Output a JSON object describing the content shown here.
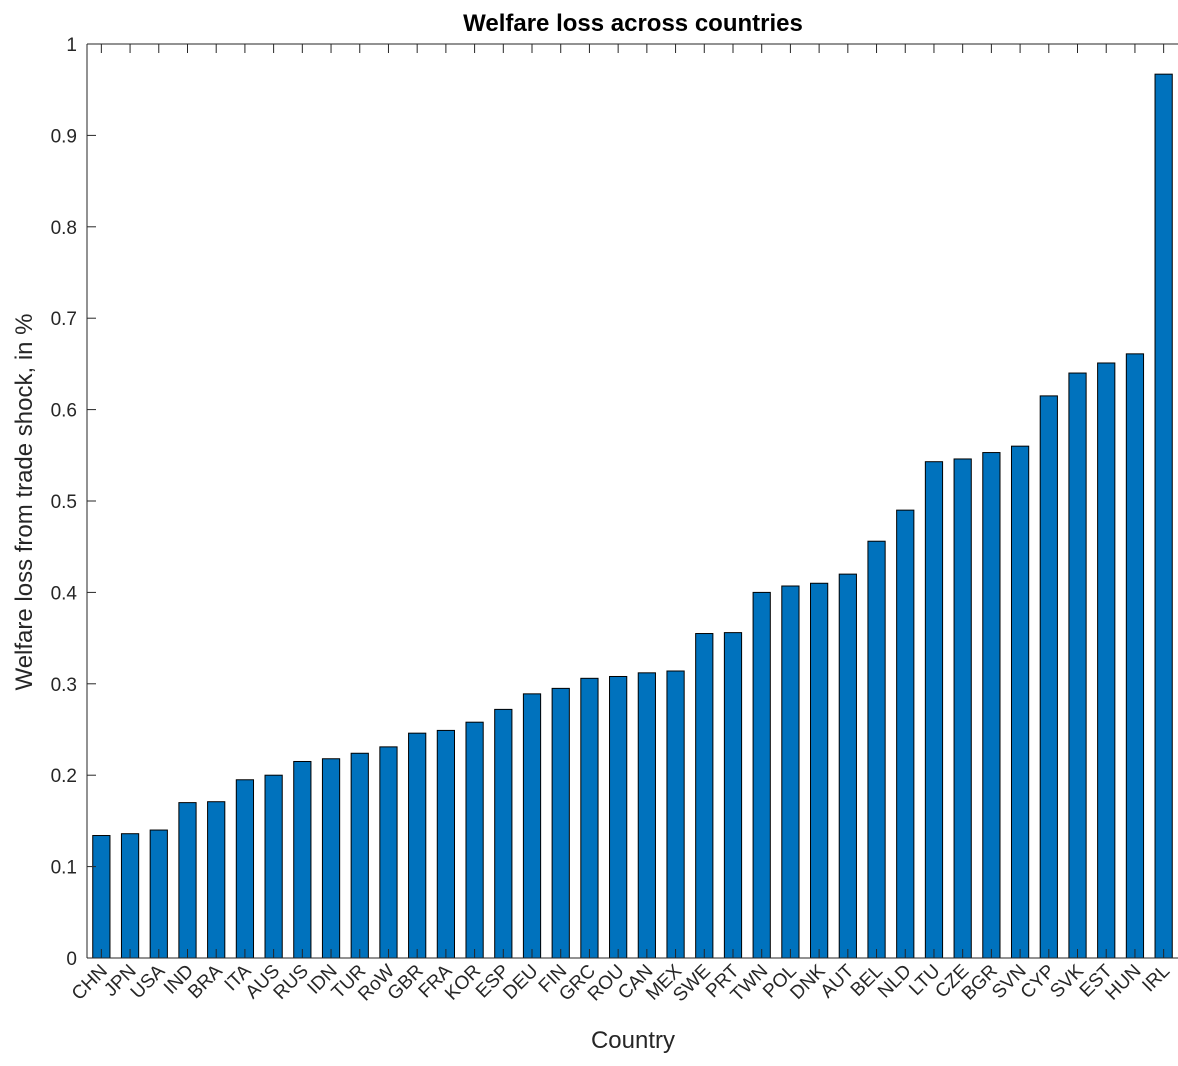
{
  "chart_data": {
    "type": "bar",
    "title": "Welfare loss across countries",
    "xlabel": "Country",
    "ylabel": "Welfare loss from trade shock, in %",
    "ylim": [
      0,
      1
    ],
    "yticks": [
      0,
      0.1,
      0.2,
      0.3,
      0.4,
      0.5,
      0.6,
      0.7,
      0.8,
      0.9,
      1
    ],
    "ytick_labels": [
      "0",
      "0.1",
      "0.2",
      "0.3",
      "0.4",
      "0.5",
      "0.6",
      "0.7",
      "0.8",
      "0.9",
      "1"
    ],
    "grid": false,
    "bar_color": "#0072BD",
    "categories": [
      "CHN",
      "JPN",
      "USA",
      "IND",
      "BRA",
      "ITA",
      "AUS",
      "RUS",
      "IDN",
      "TUR",
      "RoW",
      "GBR",
      "FRA",
      "KOR",
      "ESP",
      "DEU",
      "FIN",
      "GRC",
      "ROU",
      "CAN",
      "MEX",
      "SWE",
      "PRT",
      "TWN",
      "POL",
      "DNK",
      "AUT",
      "BEL",
      "NLD",
      "LTU",
      "CZE",
      "BGR",
      "SVN",
      "CYP",
      "SVK",
      "EST",
      "HUN",
      "IRL"
    ],
    "values": [
      0.134,
      0.136,
      0.14,
      0.17,
      0.171,
      0.195,
      0.2,
      0.215,
      0.218,
      0.224,
      0.231,
      0.246,
      0.249,
      0.258,
      0.272,
      0.289,
      0.295,
      0.306,
      0.308,
      0.312,
      0.314,
      0.355,
      0.356,
      0.4,
      0.407,
      0.41,
      0.42,
      0.456,
      0.49,
      0.543,
      0.546,
      0.553,
      0.56,
      0.615,
      0.64,
      0.651,
      0.661,
      0.967
    ]
  }
}
